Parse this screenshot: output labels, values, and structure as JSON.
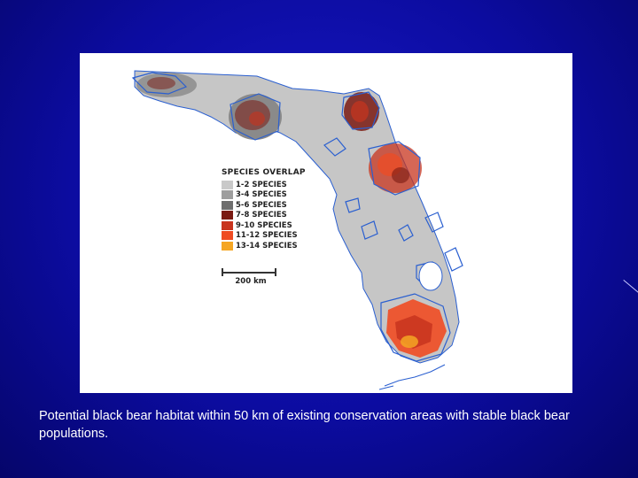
{
  "map": {
    "legend": {
      "title": "SPECIES OVERLAP",
      "items": [
        {
          "label": "1-2 SPECIES",
          "color": "#c9c9c9"
        },
        {
          "label": "3-4 SPECIES",
          "color": "#9e9e9e"
        },
        {
          "label": "5-6 SPECIES",
          "color": "#6e6e6e"
        },
        {
          "label": "7-8 SPECIES",
          "color": "#7a1a12"
        },
        {
          "label": "9-10 SPECIES",
          "color": "#c8341e"
        },
        {
          "label": "11-12 SPECIES",
          "color": "#ef4b22"
        },
        {
          "label": "13-14 SPECIES",
          "color": "#f5a623"
        }
      ]
    },
    "scale_label": "200 km",
    "colors": {
      "land": "#c6c6c6",
      "conservation_outline": "#2a5fd0",
      "background": "#ffffff"
    }
  },
  "caption": "Potential black bear habitat within 50 km of existing conservation areas with stable black bear populations."
}
